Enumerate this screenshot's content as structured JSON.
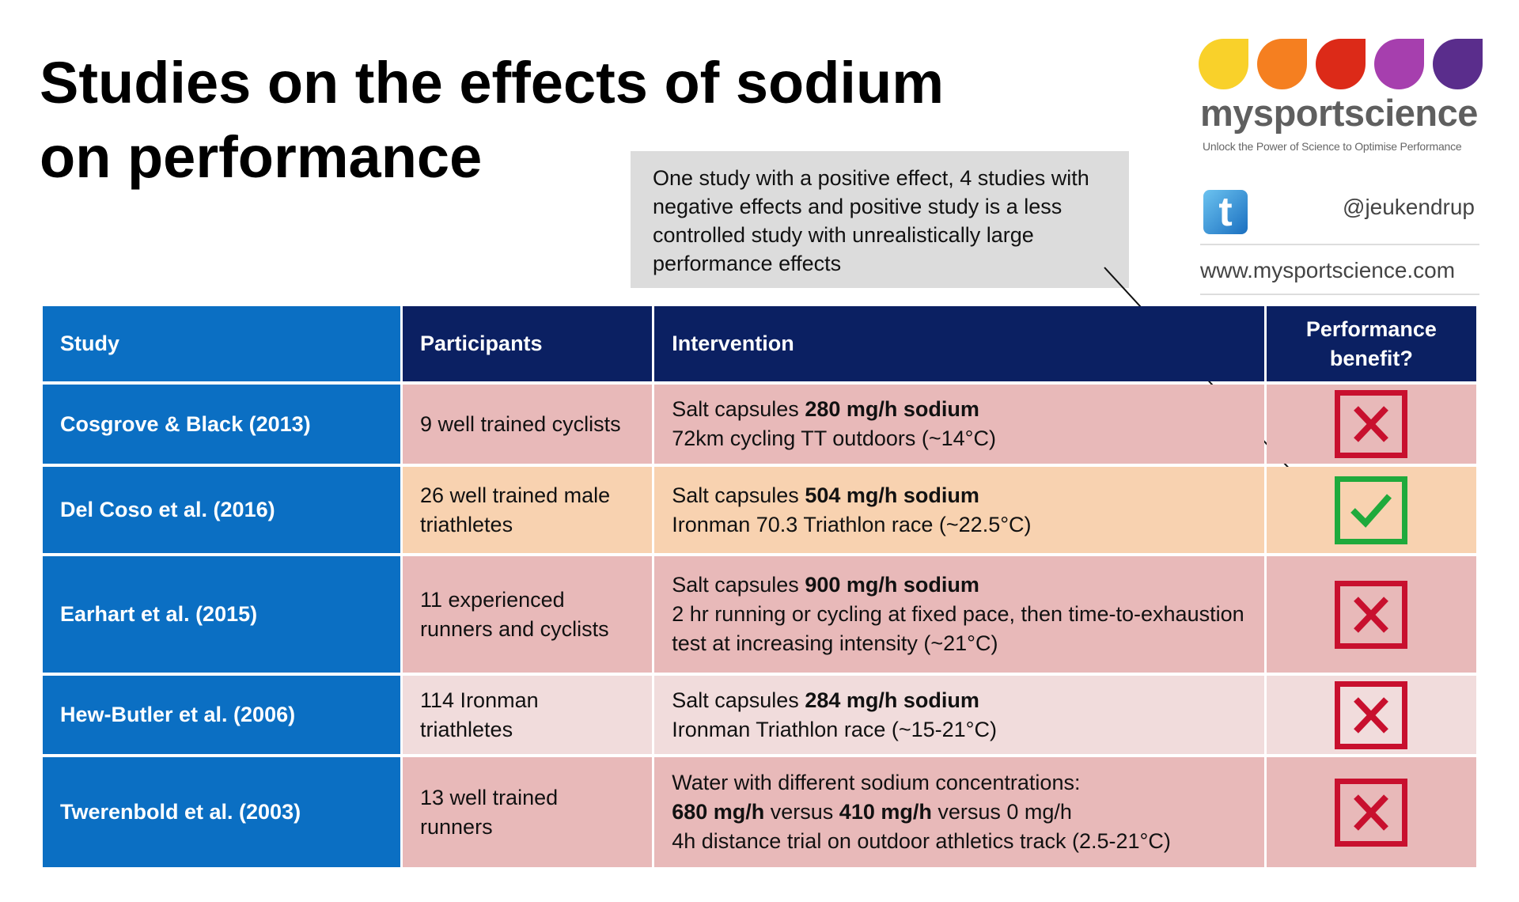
{
  "title": "Studies on the effects of sodium on performance",
  "callout": "One study with a positive effect, 4 studies with negative effects and positive study is a less controlled study with  unrealistically large performance effects",
  "logo": {
    "brand": "mysportscience",
    "tagline": "Unlock the Power of Science to Optimise Performance",
    "drop_colors": [
      "#f9d12a",
      "#f57f20",
      "#dc2a18",
      "#a63fae",
      "#5a2d8c"
    ]
  },
  "twitter": {
    "icon": "twitter-icon",
    "handle": "@jeukendrup"
  },
  "website": "www.mysportscience.com",
  "colors": {
    "study_col": "#0b6fc3",
    "header": "#0b2062",
    "negative_row": "#e8b9b9",
    "positive_row": "#f8d2b0",
    "cross": "#c8102e",
    "check": "#1faa3c"
  },
  "table": {
    "headers": [
      "Study",
      "Participants",
      "Intervention",
      "Performance benefit?"
    ],
    "rows": [
      {
        "study": "Cosgrove & Black (2013)",
        "participants": "9 well trained cyclists",
        "int_pre": "Salt capsules ",
        "int_bold": " 280 mg/h sodium",
        "int_line2": "72km cycling TT outdoors (~14°C)",
        "int_line3": "",
        "benefit": "no"
      },
      {
        "study": "Del Coso et al. (2016)",
        "participants": "26 well trained male triathletes",
        "int_pre": "Salt capsules ",
        "int_bold": "504 mg/h sodium",
        "int_line2": "Ironman 70.3 Triathlon race (~22.5°C)",
        "int_line3": "",
        "benefit": "yes"
      },
      {
        "study": "Earhart et al. (2015)",
        "participants": "11 experienced runners and cyclists",
        "int_pre": "Salt capsules ",
        "int_bold": "900 mg/h sodium",
        "int_line2": "2 hr running or cycling at fixed pace, then time-to-exhaustion test at increasing intensity (~21°C)",
        "int_line3": "",
        "benefit": "no"
      },
      {
        "study": "Hew-Butler et al. (2006)",
        "participants": "114 Ironman triathletes",
        "int_pre": "Salt capsules ",
        "int_bold": "284 mg/h sodium",
        "int_line2": "Ironman Triathlon race (~15-21°C)",
        "int_line3": "",
        "benefit": "no"
      },
      {
        "study": "Twerenbold et al. (2003)",
        "participants": "13 well trained runners",
        "int_pre": "Water with different sodium concentrations:",
        "int_b1": "680 mg/h",
        "int_m1": " versus ",
        "int_b2": "410 mg/h",
        "int_m2": " versus 0 mg/h",
        "int_line3": "4h distance trial on outdoor athletics track (2.5-21°C)",
        "benefit": "no"
      }
    ]
  }
}
